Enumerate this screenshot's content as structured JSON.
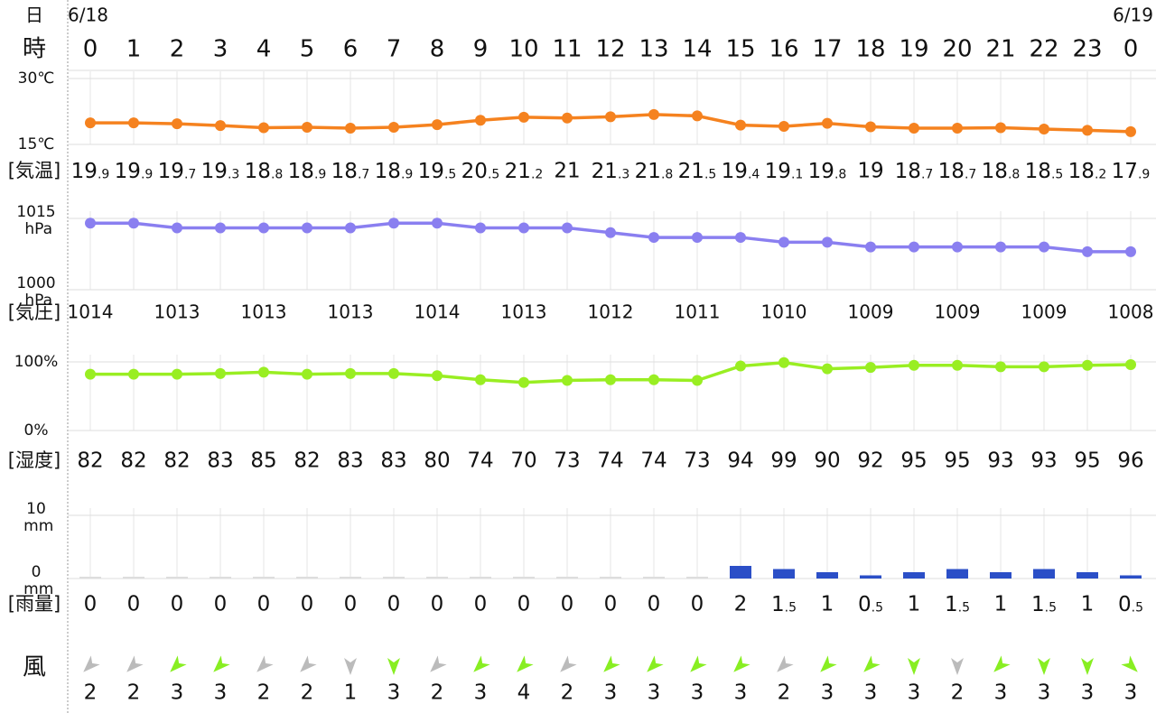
{
  "header": {
    "day_label": "日",
    "hour_label": "時",
    "date_start": "6/18",
    "date_end": "6/19",
    "hours": [
      0,
      1,
      2,
      3,
      4,
      5,
      6,
      7,
      8,
      9,
      10,
      11,
      12,
      13,
      14,
      15,
      16,
      17,
      18,
      19,
      20,
      21,
      22,
      23,
      0
    ]
  },
  "chart_data": [
    {
      "type": "line",
      "label": "[気温]",
      "color": "#f5821f",
      "small_decimals": true,
      "values": [
        19.9,
        19.9,
        19.7,
        19.3,
        18.8,
        18.9,
        18.7,
        18.9,
        19.5,
        20.5,
        21.2,
        21,
        21.3,
        21.8,
        21.5,
        19.4,
        19.1,
        19.8,
        19,
        18.7,
        18.7,
        18.8,
        18.5,
        18.2,
        17.9
      ],
      "ylim": [
        15,
        30
      ],
      "yticks": [
        {
          "value": 30,
          "label": "30℃"
        },
        {
          "value": 15,
          "label": "15℃"
        }
      ],
      "grid": true
    },
    {
      "type": "line",
      "label": "[気圧]",
      "color": "#8a7ff0",
      "label_step": 2,
      "values": [
        1014,
        1014,
        1013,
        1013,
        1013,
        1013,
        1013,
        1014,
        1014,
        1013,
        1013,
        1013,
        1012,
        1011,
        1011,
        1011,
        1010,
        1010,
        1009,
        1009,
        1009,
        1009,
        1009,
        1008,
        1008
      ],
      "ylim": [
        1000,
        1015
      ],
      "yticks": [
        {
          "value": 1015,
          "label": "1015 hPa"
        },
        {
          "value": 1000,
          "label": "1000 hPa"
        }
      ],
      "grid": true
    },
    {
      "type": "line",
      "label": "[湿度]",
      "color": "#99ee22",
      "values": [
        82,
        82,
        82,
        83,
        85,
        82,
        83,
        83,
        80,
        74,
        70,
        73,
        74,
        74,
        73,
        94,
        99,
        90,
        92,
        95,
        95,
        93,
        93,
        95,
        96
      ],
      "ylim": [
        0,
        100
      ],
      "yticks": [
        {
          "value": 100,
          "label": "100%"
        },
        {
          "value": 0,
          "label": "0%"
        }
      ],
      "grid": true
    },
    {
      "type": "bar",
      "label": "[雨量]",
      "color": "#2b4fc7",
      "zero_color": "#dddddd",
      "small_decimals": true,
      "values": [
        0,
        0,
        0,
        0,
        0,
        0,
        0,
        0,
        0,
        0,
        0,
        0,
        0,
        0,
        0,
        2,
        1.5,
        1,
        0.5,
        1,
        1.5,
        1,
        1.5,
        1,
        0.5
      ],
      "ylim": [
        0,
        10
      ],
      "yticks": [
        {
          "value": 10,
          "label": "10 mm"
        },
        {
          "value": 0,
          "label": "0 mm"
        }
      ],
      "grid": true
    }
  ],
  "wind": {
    "label": "風",
    "speeds": [
      2,
      2,
      3,
      3,
      2,
      2,
      1,
      3,
      2,
      3,
      4,
      2,
      3,
      3,
      3,
      3,
      2,
      3,
      3,
      3,
      2,
      3,
      3,
      3,
      3
    ],
    "arrow_angles": [
      45,
      45,
      45,
      45,
      45,
      45,
      0,
      0,
      45,
      45,
      45,
      45,
      45,
      45,
      45,
      45,
      45,
      45,
      45,
      0,
      0,
      45,
      0,
      0,
      -45
    ],
    "colors": [
      "#bbbbbb",
      "#bbbbbb",
      "#88ee22",
      "#88ee22",
      "#bbbbbb",
      "#bbbbbb",
      "#bbbbbb",
      "#88ee22",
      "#bbbbbb",
      "#88ee22",
      "#88ee22",
      "#bbbbbb",
      "#88ee22",
      "#88ee22",
      "#88ee22",
      "#88ee22",
      "#bbbbbb",
      "#88ee22",
      "#88ee22",
      "#88ee22",
      "#bbbbbb",
      "#88ee22",
      "#88ee22",
      "#88ee22",
      "#88ee22"
    ]
  }
}
